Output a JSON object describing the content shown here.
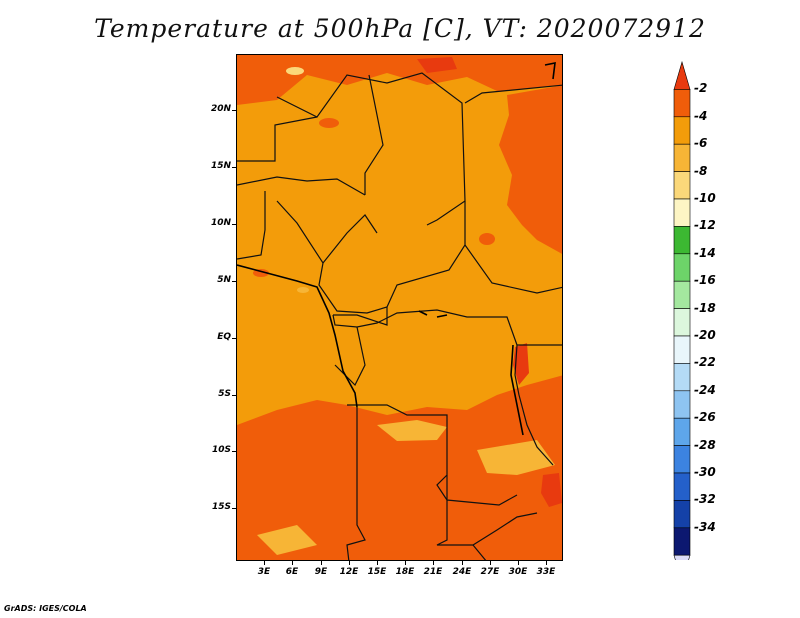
{
  "title": "Temperature at 500hPa [C], VT: 2020072912",
  "credit": "GrADS: IGES/COLA",
  "axes": {
    "lat_ticks": [
      "20N",
      "15N",
      "10N",
      "5N",
      "EQ",
      "5S",
      "10S",
      "15S"
    ],
    "lon_ticks": [
      "3E",
      "6E",
      "9E",
      "12E",
      "15E",
      "18E",
      "21E",
      "24E",
      "27E",
      "30E",
      "33E"
    ]
  },
  "colorbar": {
    "levels": [
      "-2",
      "-4",
      "-6",
      "-8",
      "-10",
      "-12",
      "-14",
      "-16",
      "-18",
      "-20",
      "-22",
      "-24",
      "-26",
      "-28",
      "-30",
      "-32",
      "-34"
    ],
    "colors": [
      "#e83a0f",
      "#f05d0a",
      "#f39c0a",
      "#f7b536",
      "#fbd87a",
      "#fdf5c4",
      "#3cb832",
      "#6dd469",
      "#a4e89f",
      "#dcf7dd",
      "#e9f6fb",
      "#b4dbf6",
      "#8ec4f1",
      "#5ea6ea",
      "#3c83e0",
      "#2460ca",
      "#1441a8",
      "#0c1870",
      "#dcdcf8"
    ]
  },
  "field_colors": {
    "dark_orange": "#f05d0a",
    "orange": "#f39c0a",
    "light_orange": "#f7b536",
    "red": "#e83a0f",
    "pale": "#fbd87a"
  }
}
